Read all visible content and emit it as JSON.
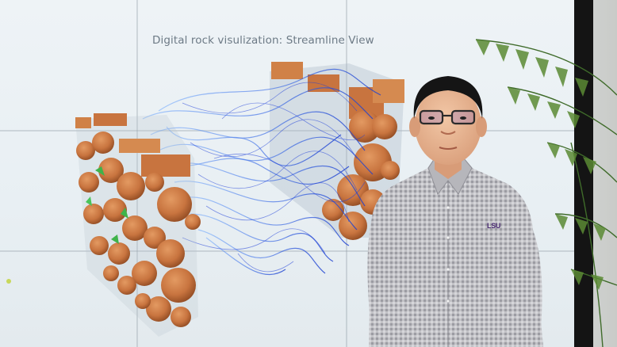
{
  "screen": {
    "title": "Digital rock visulization: Streamline View"
  },
  "shirt": {
    "logo_text": "LSU"
  },
  "colors": {
    "rock_grain": "#c8743f",
    "streamline": "#2d5fe0",
    "screen_bg": "#eaf0f3",
    "shirt": "#b9b9bd",
    "logo": "#4a2b72"
  }
}
